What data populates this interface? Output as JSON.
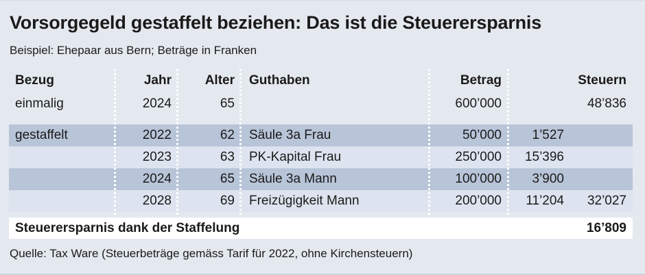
{
  "chart_data": {
    "type": "table",
    "title": "Vorsorgegeld gestaffelt beziehen: Das ist die Steuerersparnis",
    "subtitle": "Beispiel: Ehepaar aus Bern; Beträge in Franken",
    "columns": [
      "Bezug",
      "Jahr",
      "Alter",
      "Guthaben",
      "Betrag",
      "Steuern"
    ],
    "rows": [
      {
        "bezug": "einmalig",
        "jahr": "2024",
        "alter": "65",
        "guthaben": "",
        "betrag": "600’000",
        "steuern": "",
        "steuern_total": "48’836"
      },
      {
        "bezug": "gestaffelt",
        "jahr": "2022",
        "alter": "62",
        "guthaben": "Säule 3a Frau",
        "betrag": "50’000",
        "steuern": "1’527",
        "steuern_total": ""
      },
      {
        "bezug": "",
        "jahr": "2023",
        "alter": "63",
        "guthaben": "PK-Kapital Frau",
        "betrag": "250’000",
        "steuern": "15’396",
        "steuern_total": ""
      },
      {
        "bezug": "",
        "jahr": "2024",
        "alter": "65",
        "guthaben": "Säule 3a Mann",
        "betrag": "100’000",
        "steuern": "3’900",
        "steuern_total": ""
      },
      {
        "bezug": "",
        "jahr": "2028",
        "alter": "69",
        "guthaben": "Freizügigkeit Mann",
        "betrag": "200’000",
        "steuern": "11’204",
        "steuern_total": "32’027"
      }
    ],
    "summary": {
      "label": "Steuerersparnis dank der Staffelung",
      "value": "16’809"
    },
    "source": "Quelle: Tax Ware (Steuerbeträge gemäss Tarif für 2022, ohne Kirchensteuern)",
    "layout": {
      "grid": "off",
      "legend": "none",
      "striped_rows": true
    }
  },
  "colors": {
    "background": "#e4e8ef",
    "stripe_dark": "#b8c4d8",
    "stripe_light": "#dde4ef",
    "summary_background": "#ffffff",
    "text": "#1a1a1a",
    "column_separator_dots": "#ffffff"
  }
}
